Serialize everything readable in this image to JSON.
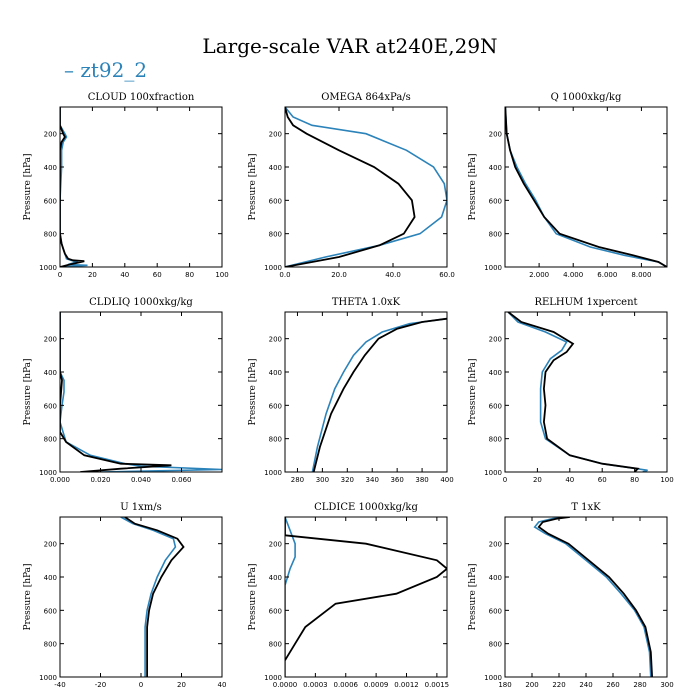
{
  "figure": {
    "title": "Large-scale VAR at240E,29N",
    "legend_label": "zt92_2",
    "legend_color": "#2b83ba",
    "ylabel": "Pressure [hPa]"
  },
  "colors": {
    "series_blue": "#2b83ba",
    "series_black": "#000000"
  },
  "chart_data": [
    {
      "type": "line",
      "title": "CLOUD  100xfraction",
      "ylabel": "Pressure [hPa]",
      "xlim": [
        0,
        100
      ],
      "ylim": [
        1000,
        40
      ],
      "y_inverted": true,
      "xticks": [
        0,
        20,
        40,
        60,
        80,
        100
      ],
      "xticklabels": [
        "0",
        "20",
        "40",
        "60",
        "80",
        "100"
      ],
      "yticks": [
        200,
        400,
        600,
        800,
        1000
      ],
      "yticklabels": [
        "200",
        "400",
        "600",
        "800",
        "1000"
      ],
      "series": [
        {
          "name": "zt92_2",
          "color": "#2b83ba",
          "x": [
            0,
            0,
            3,
            4,
            2,
            1,
            1,
            0,
            0,
            1,
            2,
            3,
            4,
            10,
            5,
            17,
            0
          ],
          "y": [
            40,
            150,
            200,
            220,
            250,
            300,
            400,
            600,
            800,
            860,
            890,
            920,
            950,
            970,
            985,
            990,
            1000
          ]
        },
        {
          "name": "",
          "color": "#000000",
          "x": [
            0,
            0,
            2,
            3,
            1,
            0,
            0,
            0,
            1,
            2,
            3,
            5,
            8,
            15,
            6,
            0
          ],
          "y": [
            40,
            150,
            200,
            220,
            250,
            300,
            400,
            800,
            860,
            890,
            920,
            950,
            960,
            965,
            985,
            1000
          ]
        }
      ]
    },
    {
      "type": "line",
      "title": "OMEGA  864xPa/s",
      "ylabel": "Pressure [hPa]",
      "xlim": [
        0,
        60
      ],
      "ylim": [
        1000,
        40
      ],
      "y_inverted": true,
      "xticks": [
        0,
        20,
        40,
        60
      ],
      "xticklabels": [
        "0.0",
        "20.0",
        "40.0",
        "60.0"
      ],
      "yticks": [
        200,
        400,
        600,
        800,
        1000
      ],
      "yticklabels": [
        "200",
        "400",
        "600",
        "800",
        "1000"
      ],
      "series": [
        {
          "name": "zt92_2",
          "color": "#2b83ba",
          "x": [
            0,
            3,
            10,
            30,
            45,
            55,
            59,
            60,
            58,
            50,
            35,
            15,
            0
          ],
          "y": [
            40,
            100,
            150,
            200,
            300,
            400,
            500,
            600,
            700,
            800,
            870,
            940,
            1000
          ]
        },
        {
          "name": "",
          "color": "#000000",
          "x": [
            0,
            1,
            3,
            8,
            20,
            33,
            42,
            47,
            48,
            44,
            35,
            20,
            0
          ],
          "y": [
            40,
            100,
            150,
            200,
            300,
            400,
            500,
            600,
            700,
            800,
            870,
            940,
            1000
          ]
        }
      ]
    },
    {
      "type": "line",
      "title": "Q  1000xkg/kg",
      "ylabel": "Pressure [hPa]",
      "xlim": [
        0,
        9.5
      ],
      "ylim": [
        1000,
        40
      ],
      "y_inverted": true,
      "xticks": [
        2,
        4,
        6,
        8
      ],
      "xticklabels": [
        "2.000",
        "4.000",
        "6.000",
        "8.000"
      ],
      "yticks": [
        200,
        400,
        600,
        800,
        1000
      ],
      "yticklabels": [
        "200",
        "400",
        "600",
        "800",
        "1000"
      ],
      "series": [
        {
          "name": "zt92_2",
          "color": "#2b83ba",
          "x": [
            0.02,
            0.1,
            0.3,
            0.7,
            1.2,
            1.8,
            2.3,
            3.0,
            5.0,
            7.0,
            9.0,
            9.5
          ],
          "y": [
            40,
            200,
            300,
            400,
            500,
            600,
            700,
            800,
            880,
            930,
            970,
            1000
          ]
        },
        {
          "name": "",
          "color": "#000000",
          "x": [
            0.02,
            0.1,
            0.3,
            0.6,
            1.1,
            1.7,
            2.3,
            3.2,
            5.5,
            7.5,
            9.0,
            9.5
          ],
          "y": [
            40,
            200,
            300,
            400,
            500,
            600,
            700,
            800,
            880,
            930,
            970,
            1000
          ]
        }
      ]
    },
    {
      "type": "line",
      "title": "CLDLIQ  1000xkg/kg",
      "ylabel": "Pressure [hPa]",
      "xlim": [
        0,
        0.08
      ],
      "ylim": [
        1000,
        40
      ],
      "y_inverted": true,
      "xticks": [
        0,
        0.02,
        0.04,
        0.06
      ],
      "xticklabels": [
        "0.000",
        "0.020",
        "0.040",
        "0.060"
      ],
      "yticks": [
        200,
        400,
        600,
        800,
        1000
      ],
      "yticklabels": [
        "200",
        "400",
        "600",
        "800",
        "1000"
      ],
      "series": [
        {
          "name": "zt92_2",
          "color": "#2b83ba",
          "x": [
            0,
            0,
            0.002,
            0.002,
            0.001,
            0,
            0.003,
            0.015,
            0.032,
            0.04,
            0.08,
            0.02
          ],
          "y": [
            40,
            400,
            450,
            520,
            600,
            700,
            820,
            900,
            950,
            965,
            985,
            1000
          ]
        },
        {
          "name": "",
          "color": "#000000",
          "x": [
            0,
            0,
            0.001,
            0,
            0,
            0.003,
            0.012,
            0.03,
            0.055,
            0.03,
            0.01
          ],
          "y": [
            40,
            400,
            450,
            600,
            760,
            820,
            900,
            950,
            960,
            980,
            1000
          ]
        }
      ]
    },
    {
      "type": "line",
      "title": "THETA  1.0xK",
      "ylabel": "Pressure [hPa]",
      "xlim": [
        270,
        400
      ],
      "ylim": [
        1000,
        40
      ],
      "y_inverted": true,
      "xticks": [
        280,
        300,
        320,
        340,
        360,
        380,
        400
      ],
      "xticklabels": [
        "280",
        "300",
        "320",
        "340",
        "360",
        "380",
        "400"
      ],
      "yticks": [
        200,
        400,
        600,
        800,
        1000
      ],
      "yticklabels": [
        "200",
        "400",
        "600",
        "800",
        "1000"
      ],
      "series": [
        {
          "name": "zt92_2",
          "color": "#2b83ba",
          "x": [
            400,
            370,
            348,
            335,
            325,
            317,
            310,
            303,
            296,
            292
          ],
          "y": [
            80,
            110,
            160,
            220,
            300,
            400,
            500,
            650,
            850,
            1000
          ]
        },
        {
          "name": "",
          "color": "#000000",
          "x": [
            400,
            380,
            360,
            345,
            334,
            325,
            317,
            307,
            298,
            293
          ],
          "y": [
            80,
            100,
            140,
            200,
            300,
            400,
            500,
            650,
            850,
            1000
          ]
        }
      ]
    },
    {
      "type": "line",
      "title": "RELHUM  1xpercent",
      "ylabel": "Pressure [hPa]",
      "xlim": [
        0,
        100
      ],
      "ylim": [
        1000,
        40
      ],
      "y_inverted": true,
      "xticks": [
        0,
        20,
        40,
        60,
        80,
        100
      ],
      "xticklabels": [
        "0",
        "20",
        "40",
        "60",
        "80",
        "100"
      ],
      "yticks": [
        200,
        400,
        600,
        800,
        1000
      ],
      "yticklabels": [
        "200",
        "400",
        "600",
        "800",
        "1000"
      ],
      "series": [
        {
          "name": "zt92_2",
          "color": "#2b83ba",
          "x": [
            2,
            8,
            25,
            38,
            35,
            28,
            23,
            22,
            22,
            22,
            25,
            40,
            60,
            88,
            85
          ],
          "y": [
            40,
            100,
            160,
            220,
            270,
            320,
            400,
            500,
            600,
            700,
            800,
            900,
            950,
            990,
            1000
          ]
        },
        {
          "name": "",
          "color": "#000000",
          "x": [
            2,
            10,
            30,
            42,
            38,
            30,
            25,
            24,
            25,
            24,
            26,
            40,
            60,
            82,
            80
          ],
          "y": [
            40,
            100,
            160,
            230,
            280,
            330,
            400,
            500,
            600,
            700,
            800,
            900,
            950,
            980,
            1000
          ]
        }
      ]
    },
    {
      "type": "line",
      "title": "U  1xm/s",
      "ylabel": "Pressure [hPa]",
      "xlim": [
        -40,
        40
      ],
      "ylim": [
        1000,
        40
      ],
      "y_inverted": true,
      "xticks": [
        -40,
        -20,
        0,
        20,
        40
      ],
      "xticklabels": [
        "-40",
        "-20",
        "0",
        "20",
        "40"
      ],
      "yticks": [
        200,
        400,
        600,
        800,
        1000
      ],
      "yticklabels": [
        "200",
        "400",
        "600",
        "800",
        "1000"
      ],
      "series": [
        {
          "name": "zt92_2",
          "color": "#2b83ba",
          "x": [
            -10,
            -4,
            6,
            16,
            17,
            12,
            8,
            5,
            3,
            2,
            2,
            2
          ],
          "y": [
            40,
            80,
            120,
            170,
            220,
            300,
            400,
            500,
            600,
            700,
            800,
            1000
          ]
        },
        {
          "name": "",
          "color": "#000000",
          "x": [
            -8,
            -3,
            8,
            18,
            21,
            15,
            10,
            6,
            4,
            3,
            3,
            3
          ],
          "y": [
            40,
            80,
            120,
            170,
            220,
            300,
            400,
            500,
            600,
            700,
            800,
            1000
          ]
        }
      ]
    },
    {
      "type": "line",
      "title": "CLDICE  1000xkg/kg",
      "ylabel": "Pressure [hPa]",
      "xlim": [
        0,
        0.0016
      ],
      "ylim": [
        1000,
        40
      ],
      "y_inverted": true,
      "xticks": [
        0,
        0.0003,
        0.0006,
        0.0009,
        0.0012,
        0.0015
      ],
      "xticklabels": [
        "0.0000",
        "0.0003",
        "0.0006",
        "0.0009",
        "0.0012",
        "0.0015"
      ],
      "yticks": [
        200,
        400,
        600,
        800,
        1000
      ],
      "yticklabels": [
        "200",
        "400",
        "600",
        "800",
        "1000"
      ],
      "series": [
        {
          "name": "zt92_2",
          "color": "#2b83ba",
          "x": [
            0,
            0.0001,
            0.0001,
            5e-05,
            0,
            0,
            0
          ],
          "y": [
            40,
            200,
            280,
            350,
            450,
            700,
            1000
          ]
        },
        {
          "name": "",
          "color": "#000000",
          "x": [
            0,
            0,
            0.0008,
            0.0015,
            0.0016,
            0.0015,
            0.0011,
            0.0005,
            0.0002,
            0.0001,
            0
          ],
          "y": [
            40,
            150,
            200,
            300,
            350,
            400,
            500,
            560,
            700,
            800,
            900
          ]
        }
      ]
    },
    {
      "type": "line",
      "title": "T  1xK",
      "ylabel": "Pressure [hPa]",
      "xlim": [
        180,
        300
      ],
      "ylim": [
        1000,
        40
      ],
      "y_inverted": true,
      "xticks": [
        180,
        200,
        220,
        240,
        260,
        280,
        300
      ],
      "xticklabels": [
        "180",
        "200",
        "220",
        "240",
        "260",
        "280",
        "300"
      ],
      "yticks": [
        200,
        400,
        600,
        800,
        1000
      ],
      "yticklabels": [
        "200",
        "400",
        "600",
        "800",
        "1000"
      ],
      "series": [
        {
          "name": "zt92_2",
          "color": "#2b83ba",
          "x": [
            225,
            215,
            205,
            202,
            210,
            225,
            240,
            255,
            266,
            276,
            283,
            287,
            288
          ],
          "y": [
            40,
            50,
            70,
            100,
            140,
            200,
            300,
            400,
            500,
            600,
            700,
            850,
            1000
          ]
        },
        {
          "name": "",
          "color": "#000000",
          "x": [
            228,
            218,
            208,
            205,
            212,
            227,
            242,
            257,
            268,
            277,
            284,
            288,
            289
          ],
          "y": [
            40,
            50,
            70,
            100,
            140,
            200,
            300,
            400,
            500,
            600,
            700,
            850,
            1000
          ]
        }
      ]
    }
  ]
}
